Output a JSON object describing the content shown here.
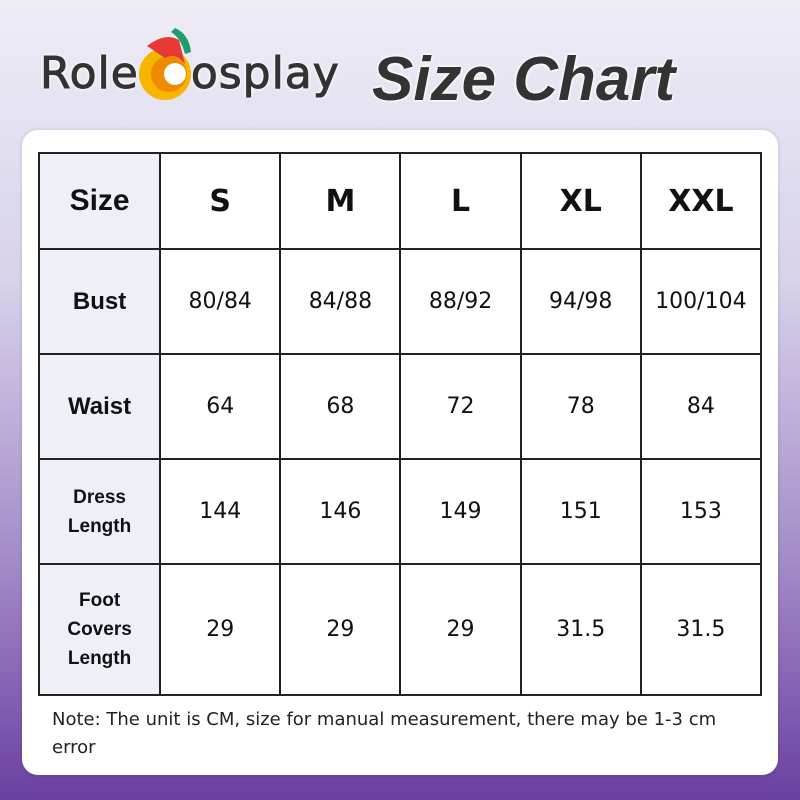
{
  "brand": {
    "name_part1": "Role",
    "name_part2": "osplay",
    "logo_colors": {
      "orange": "#f39c12",
      "red": "#e53935",
      "green": "#1e9e6a"
    }
  },
  "title": "Size Chart",
  "table": {
    "header": [
      "Size",
      "S",
      "M",
      "L",
      "XL",
      "XXL"
    ],
    "rows": [
      {
        "label": "Bust",
        "values": [
          "80/84",
          "84/88",
          "88/92",
          "94/98",
          "100/104"
        ]
      },
      {
        "label": "Waist",
        "values": [
          "64",
          "68",
          "72",
          "78",
          "84"
        ]
      },
      {
        "label": "Dress Length",
        "values": [
          "144",
          "146",
          "149",
          "151",
          "153"
        ]
      },
      {
        "label": "Foot Covers Length",
        "values": [
          "29",
          "29",
          "29",
          "31.5",
          "31.5"
        ]
      }
    ]
  },
  "note": "Note: The unit is CM, size for manual measurement, there may be 1-3 cm error"
}
